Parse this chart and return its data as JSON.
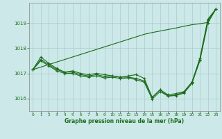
{
  "xlabel": "Graphe pression niveau de la mer (hPa)",
  "x": [
    0,
    1,
    2,
    3,
    4,
    5,
    6,
    7,
    8,
    9,
    10,
    11,
    12,
    13,
    14,
    15,
    16,
    17,
    18,
    19,
    20,
    21,
    22,
    23
  ],
  "line1": [
    1017.15,
    1017.65,
    1017.4,
    1017.2,
    1017.05,
    1017.1,
    1017.0,
    1016.95,
    1017.0,
    1016.95,
    1016.9,
    1016.85,
    1016.9,
    1016.95,
    1016.8,
    1016.05,
    1016.35,
    1016.1,
    1016.15,
    1016.25,
    1016.65,
    1017.6,
    1019.15,
    1019.55
  ],
  "line2": [
    1017.15,
    1017.55,
    1017.35,
    1017.15,
    1017.05,
    1017.05,
    1016.95,
    1016.9,
    1016.95,
    1016.88,
    1016.9,
    1016.85,
    1016.85,
    1016.8,
    1016.7,
    1016.05,
    1016.35,
    1016.15,
    1016.2,
    1016.28,
    1016.65,
    1017.55,
    1019.1,
    1019.55
  ],
  "line3": [
    1017.15,
    1017.5,
    1017.3,
    1017.1,
    1017.0,
    1017.0,
    1016.9,
    1016.85,
    1016.9,
    1016.82,
    1016.85,
    1016.8,
    1016.82,
    1016.75,
    1016.65,
    1015.98,
    1016.28,
    1016.1,
    1016.12,
    1016.22,
    1016.6,
    1017.5,
    1019.0,
    1019.55
  ],
  "line_smooth": [
    1017.15,
    1017.25,
    1017.35,
    1017.45,
    1017.55,
    1017.65,
    1017.75,
    1017.85,
    1017.95,
    1018.05,
    1018.15,
    1018.25,
    1018.35,
    1018.45,
    1018.55,
    1018.62,
    1018.68,
    1018.74,
    1018.8,
    1018.87,
    1018.93,
    1018.97,
    1019.02,
    1019.55
  ],
  "line_color": "#1a6b1a",
  "bg_color": "#cce8e8",
  "grid_color": "#aacccc",
  "text_color": "#1a6b1a",
  "ylim": [
    1015.5,
    1019.8
  ],
  "yticks": [
    1016,
    1017,
    1018,
    1019
  ],
  "xticks": [
    0,
    1,
    2,
    3,
    4,
    5,
    6,
    7,
    8,
    9,
    10,
    11,
    12,
    13,
    14,
    15,
    16,
    17,
    18,
    19,
    20,
    21,
    22,
    23
  ],
  "figsize": [
    3.2,
    2.0
  ],
  "dpi": 100
}
